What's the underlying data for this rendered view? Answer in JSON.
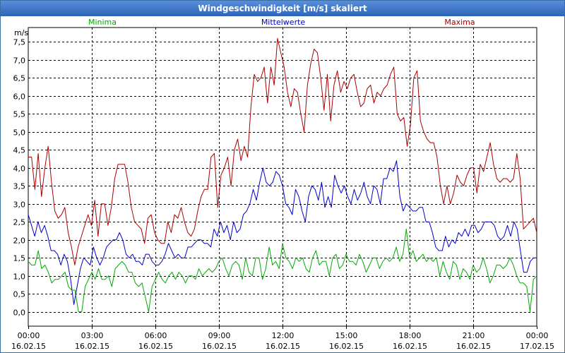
{
  "window": {
    "title": "Windgeschwindigkeit [m/s] skaliert"
  },
  "colors": {
    "minima": "#00aa00",
    "mittelwerte": "#0000cc",
    "maxima": "#aa0000",
    "grid": "#000000"
  },
  "chart_data": {
    "type": "line",
    "title": "Windgeschwindigkeit [m/s] skaliert",
    "ylabel": "m/s",
    "xlabel": "",
    "ylim": [
      -0.4,
      7.9
    ],
    "xlim": [
      0,
      24
    ],
    "grid": true,
    "legend": "top",
    "y_ticks": [
      "0,0",
      "0,5",
      "1,0",
      "1,5",
      "2,0",
      "2,5",
      "3,0",
      "3,5",
      "4,0",
      "4,5",
      "5,0",
      "5,5",
      "6,0",
      "6,5",
      "7,0",
      "7,5"
    ],
    "x_ticks": [
      {
        "time": "00:00",
        "date": "16.02.15"
      },
      {
        "time": "03:00",
        "date": "16.02.15"
      },
      {
        "time": "06:00",
        "date": "16.02.15"
      },
      {
        "time": "09:00",
        "date": "16.02.15"
      },
      {
        "time": "12:00",
        "date": "16.02.15"
      },
      {
        "time": "15:00",
        "date": "16.02.15"
      },
      {
        "time": "18:00",
        "date": "16.02.15"
      },
      {
        "time": "21:00",
        "date": "16.02.15"
      },
      {
        "time": "00:00",
        "date": "17.02.15"
      }
    ],
    "series": [
      {
        "name": "Maxima",
        "values": [
          4.3,
          4.3,
          3.4,
          4.4,
          3.2,
          4.0,
          4.6,
          3.6,
          2.8,
          2.6,
          2.7,
          2.9,
          2.2,
          1.8,
          1.3,
          1.8,
          2.1,
          2.4,
          2.7,
          2.4,
          3.1,
          2.1,
          3.0,
          3.0,
          2.4,
          2.9,
          3.7,
          4.1,
          4.1,
          4.1,
          3.6,
          2.9,
          2.5,
          2.4,
          2.3,
          1.9,
          2.6,
          2.7,
          2.2,
          2.0,
          1.9,
          1.9,
          2.5,
          2.2,
          2.7,
          2.6,
          2.9,
          2.5,
          2.2,
          2.1,
          2.3,
          2.8,
          3.2,
          3.4,
          3.4,
          4.3,
          4.4,
          2.9,
          3.8,
          4.0,
          4.3,
          3.5,
          4.5,
          4.8,
          4.2,
          4.6,
          4.3,
          5.7,
          6.6,
          6.4,
          6.5,
          6.8,
          5.8,
          6.8,
          6.3,
          7.6,
          7.2,
          6.8,
          6.1,
          5.7,
          6.2,
          6.1,
          5.5,
          5.0,
          6.3,
          6.9,
          7.3,
          7.2,
          6.5,
          5.6,
          6.6,
          5.3,
          6.3,
          6.7,
          6.1,
          6.4,
          6.2,
          6.5,
          6.6,
          6.1,
          5.7,
          5.8,
          6.2,
          6.3,
          5.8,
          6.1,
          6.0,
          6.2,
          6.3,
          6.6,
          6.8,
          5.5,
          5.3,
          5.4,
          4.6,
          5.2,
          6.5,
          6.7,
          5.3,
          5.0,
          4.8,
          4.7,
          4.7,
          4.3,
          3.5,
          3.0,
          3.5,
          3.0,
          3.3,
          3.8,
          3.6,
          3.5,
          3.8,
          4.0,
          4.0,
          3.3,
          4.1,
          3.9,
          4.3,
          4.7,
          4.1,
          3.7,
          3.6,
          3.7,
          3.7,
          3.6,
          3.7,
          4.4,
          3.7,
          2.3,
          2.4,
          2.5,
          2.6,
          2.2
        ]
      },
      {
        "name": "Mittelwerte",
        "values": [
          2.7,
          2.4,
          2.1,
          2.5,
          2.2,
          2.4,
          2.1,
          1.7,
          1.7,
          1.6,
          1.3,
          1.6,
          1.4,
          0.9,
          0.2,
          0.7,
          1.2,
          1.5,
          1.4,
          1.3,
          1.8,
          1.5,
          1.3,
          1.5,
          1.8,
          1.9,
          2.0,
          2.0,
          2.2,
          2.0,
          1.6,
          1.5,
          1.6,
          1.4,
          1.4,
          1.3,
          1.6,
          1.6,
          1.4,
          1.3,
          1.3,
          1.4,
          1.6,
          1.9,
          1.7,
          1.5,
          1.6,
          1.5,
          1.5,
          1.8,
          1.8,
          1.9,
          2.0,
          2.0,
          1.9,
          1.9,
          1.8,
          2.3,
          2.1,
          2.5,
          2.2,
          2.4,
          2.0,
          2.5,
          2.2,
          2.3,
          2.7,
          2.8,
          3.0,
          3.4,
          3.1,
          3.6,
          4.0,
          3.6,
          3.5,
          3.6,
          3.9,
          3.8,
          3.5,
          3.0,
          2.9,
          2.7,
          3.4,
          3.2,
          2.8,
          2.5,
          3.2,
          3.5,
          3.4,
          3.1,
          3.6,
          2.9,
          3.2,
          2.9,
          3.8,
          3.5,
          3.3,
          3.5,
          3.2,
          3.0,
          3.4,
          3.1,
          3.3,
          3.6,
          3.2,
          3.0,
          3.5,
          3.4,
          3.0,
          3.7,
          3.7,
          4.0,
          3.9,
          4.2,
          3.2,
          2.8,
          3.0,
          2.9,
          2.8,
          2.8,
          2.9,
          2.9,
          2.5,
          2.5,
          2.2,
          1.8,
          1.7,
          1.7,
          2.1,
          1.8,
          2.0,
          1.9,
          2.2,
          2.1,
          2.3,
          2.1,
          2.4,
          2.4,
          2.2,
          2.3,
          2.5,
          2.5,
          2.5,
          2.4,
          2.1,
          2.0,
          2.1,
          2.4,
          2.1,
          2.5,
          2.3,
          1.7,
          1.1,
          1.1,
          1.4,
          1.5,
          1.5
        ]
      },
      {
        "name": "Minima",
        "values": [
          1.4,
          1.3,
          1.3,
          1.7,
          1.2,
          1.3,
          1.1,
          0.8,
          0.9,
          0.9,
          1.0,
          1.1,
          0.7,
          0.6,
          0.6,
          0.0,
          0.0,
          0.7,
          0.9,
          1.1,
          0.9,
          1.2,
          0.9,
          0.9,
          1.0,
          0.7,
          1.2,
          1.3,
          1.4,
          1.3,
          1.1,
          1.1,
          0.8,
          0.7,
          0.8,
          0.4,
          0.0,
          0.7,
          0.9,
          1.1,
          0.9,
          0.8,
          1.0,
          1.1,
          0.9,
          1.1,
          1.0,
          0.8,
          1.0,
          1.0,
          0.9,
          1.2,
          1.0,
          1.1,
          1.2,
          1.1,
          1.2,
          1.4,
          1.5,
          1.2,
          1.0,
          1.3,
          1.4,
          1.3,
          0.9,
          1.5,
          1.1,
          1.0,
          1.5,
          1.5,
          0.9,
          1.2,
          1.8,
          1.3,
          1.4,
          1.2,
          1.9,
          1.5,
          1.4,
          1.2,
          1.5,
          1.4,
          1.5,
          1.2,
          1.1,
          1.5,
          1.7,
          1.3,
          1.4,
          1.4,
          1.0,
          1.5,
          1.6,
          1.2,
          1.3,
          1.6,
          1.4,
          1.4,
          1.3,
          1.6,
          1.4,
          1.1,
          1.3,
          1.5,
          1.5,
          1.2,
          1.4,
          1.5,
          1.4,
          1.5,
          1.8,
          1.4,
          1.6,
          2.3,
          1.5,
          1.7,
          1.4,
          1.5,
          1.6,
          1.4,
          1.5,
          1.4,
          1.5,
          1.0,
          1.4,
          1.1,
          0.9,
          1.4,
          1.3,
          0.9,
          1.2,
          1.1,
          0.9,
          1.3,
          1.1,
          1.2,
          1.5,
          1.2,
          0.8,
          1.0,
          1.3,
          1.3,
          1.2,
          1.3,
          1.5,
          1.3,
          1.0,
          0.8,
          0.8,
          0.7,
          0.0,
          0.9,
          1.0
        ]
      }
    ]
  }
}
